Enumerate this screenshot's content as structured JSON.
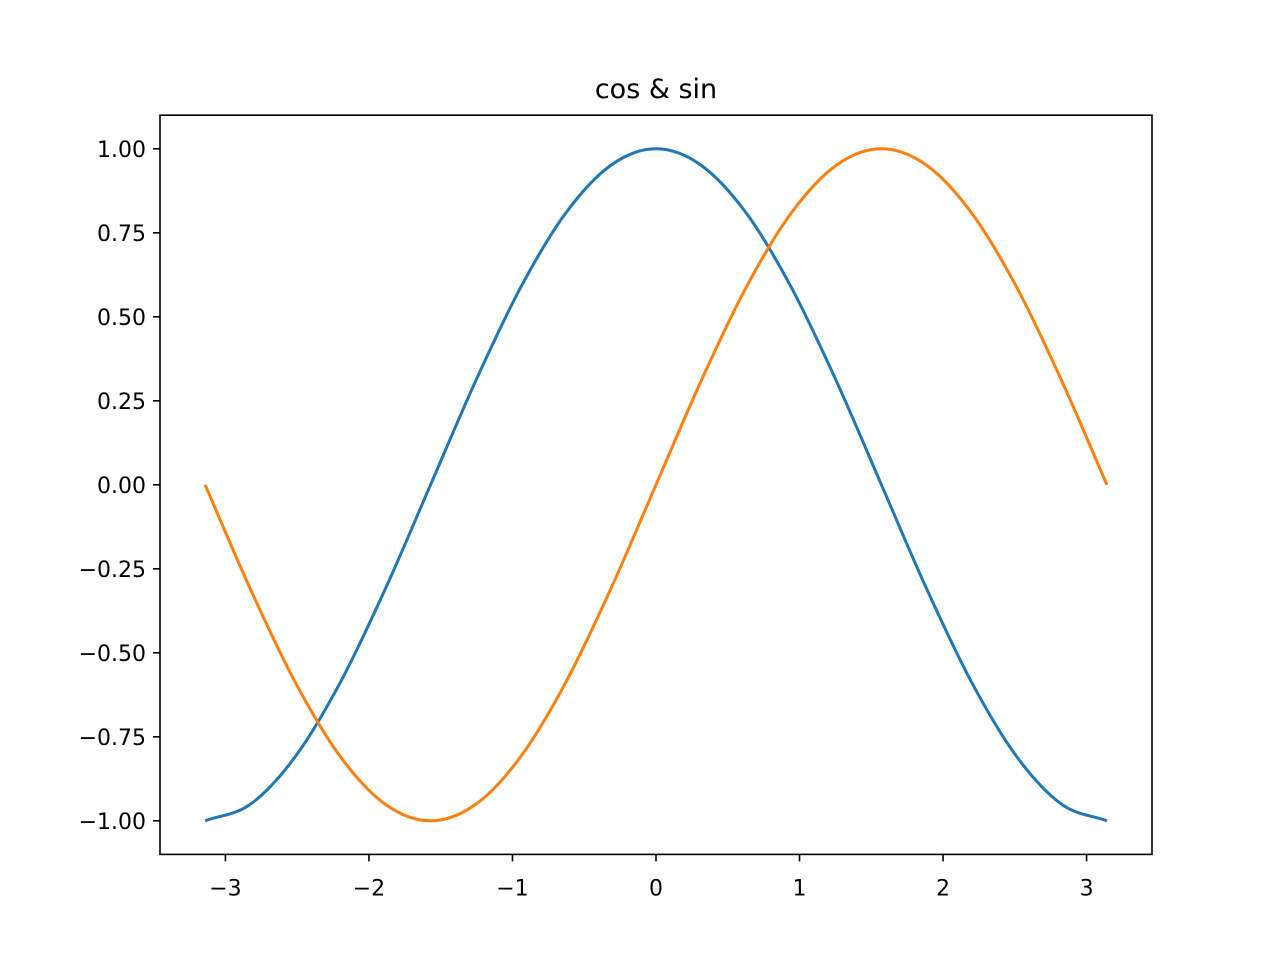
{
  "chart_data": {
    "type": "line",
    "title": "cos & sin",
    "xlabel": "",
    "ylabel": "",
    "xlim": [
      -3.4558,
      3.4558
    ],
    "ylim": [
      -1.1,
      1.1
    ],
    "xticks": [
      -3,
      -2,
      -1,
      0,
      1,
      2,
      3
    ],
    "xtick_labels": [
      "−3",
      "−2",
      "−1",
      "0",
      "1",
      "2",
      "3"
    ],
    "yticks": [
      -1.0,
      -0.75,
      -0.5,
      -0.25,
      0.0,
      0.25,
      0.5,
      0.75,
      1.0
    ],
    "ytick_labels": [
      "−1.00",
      "−0.75",
      "−0.50",
      "−0.25",
      "0.00",
      "0.25",
      "0.50",
      "0.75",
      "1.00"
    ],
    "grid": false,
    "legend": "none",
    "series": [
      {
        "color": "#1f77b4",
        "x": [
          -3.1416,
          -2.8274,
          -2.5133,
          -2.1991,
          -1.885,
          -1.5708,
          -1.2566,
          -0.9425,
          -0.6283,
          -0.3142,
          0.0,
          0.3142,
          0.6283,
          0.9425,
          1.2566,
          1.5708,
          1.885,
          2.1991,
          2.5133,
          2.8274,
          3.1416
        ],
        "y": [
          -1.0,
          -0.9511,
          -0.809,
          -0.5878,
          -0.309,
          0.0,
          0.309,
          0.5878,
          0.809,
          0.9511,
          1.0,
          0.9511,
          0.809,
          0.5878,
          0.309,
          0.0,
          -0.309,
          -0.5878,
          -0.809,
          -0.9511,
          -1.0
        ]
      },
      {
        "color": "#ff7f0e",
        "x": [
          -3.1416,
          -2.8274,
          -2.5133,
          -2.1991,
          -1.885,
          -1.5708,
          -1.2566,
          -0.9425,
          -0.6283,
          -0.3142,
          0.0,
          0.3142,
          0.6283,
          0.9425,
          1.2566,
          1.5708,
          1.885,
          2.1991,
          2.5133,
          2.8274,
          3.1416
        ],
        "y": [
          0.0,
          -0.309,
          -0.5878,
          -0.809,
          -0.9511,
          -1.0,
          -0.9511,
          -0.809,
          -0.5878,
          -0.309,
          0.0,
          0.309,
          0.5878,
          0.809,
          0.9511,
          1.0,
          0.9511,
          0.809,
          0.5878,
          0.309,
          0.0
        ]
      }
    ]
  }
}
